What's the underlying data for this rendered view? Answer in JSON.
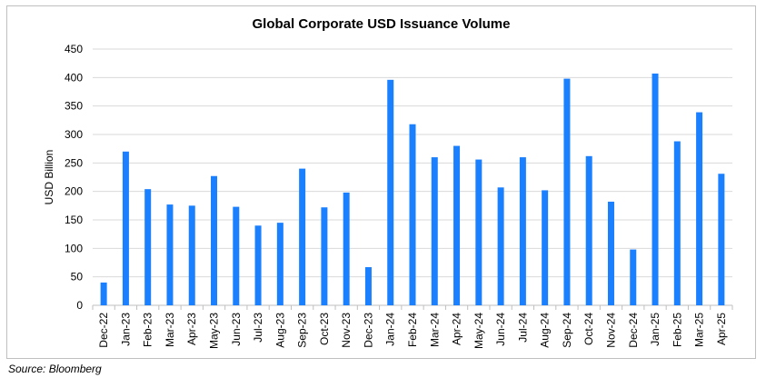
{
  "chart_data": {
    "type": "bar",
    "title": "Global Corporate USD Issuance Volume",
    "xlabel": "",
    "ylabel": "USD Billion",
    "ylim": [
      0,
      450
    ],
    "yticks": [
      0,
      50,
      100,
      150,
      200,
      250,
      300,
      350,
      400,
      450
    ],
    "grid": true,
    "bar_color": "#1a80ff",
    "categories": [
      "Dec-22",
      "Jan-23",
      "Feb-23",
      "Mar-23",
      "Apr-23",
      "May-23",
      "Jun-23",
      "Jul-23",
      "Aug-23",
      "Sep-23",
      "Oct-23",
      "Nov-23",
      "Dec-23",
      "Jan-24",
      "Feb-24",
      "Mar-24",
      "Apr-24",
      "May-24",
      "Jun-24",
      "Jul-24",
      "Aug-24",
      "Sep-24",
      "Oct-24",
      "Nov-24",
      "Dec-24",
      "Jan-25",
      "Feb-25",
      "Mar-25",
      "Apr-25"
    ],
    "values": [
      40,
      270,
      204,
      177,
      175,
      227,
      173,
      140,
      145,
      240,
      172,
      198,
      67,
      396,
      318,
      260,
      280,
      256,
      207,
      260,
      202,
      398,
      262,
      182,
      98,
      407,
      288,
      339,
      231
    ]
  },
  "source": "Source: Bloomberg"
}
